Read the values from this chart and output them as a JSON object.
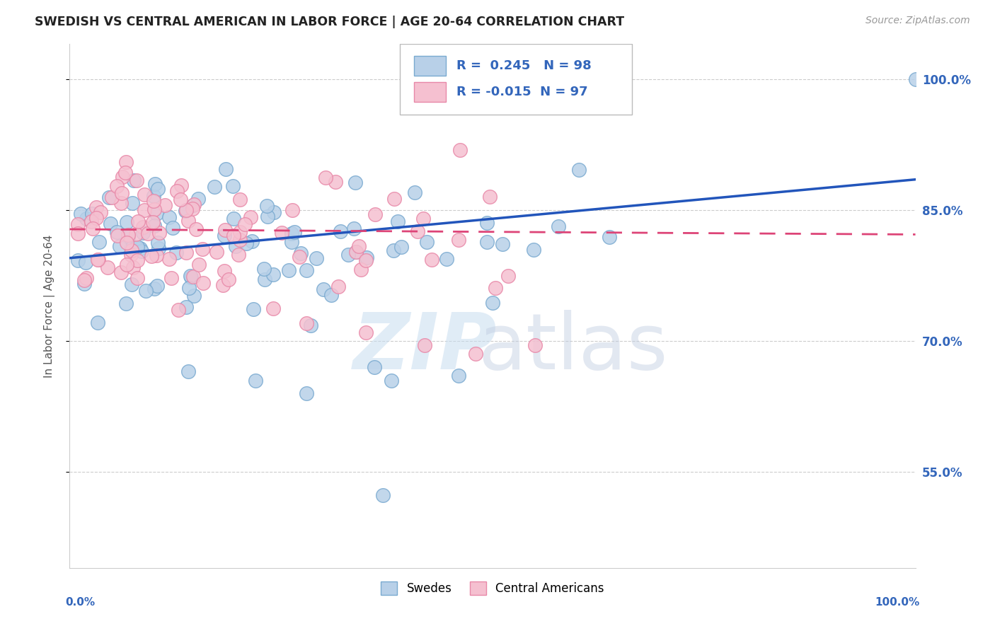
{
  "title": "SWEDISH VS CENTRAL AMERICAN IN LABOR FORCE | AGE 20-64 CORRELATION CHART",
  "source_text": "Source: ZipAtlas.com",
  "ylabel": "In Labor Force | Age 20-64",
  "blue_color": "#b8d0e8",
  "blue_edge": "#7aaad0",
  "pink_color": "#f5c0d0",
  "pink_edge": "#e888a8",
  "blue_line_color": "#2255bb",
  "pink_line_color": "#dd4477",
  "R_blue": 0.245,
  "N_blue": 98,
  "R_pink": -0.015,
  "N_pink": 97,
  "legend_label_blue": "Swedes",
  "legend_label_pink": "Central Americans",
  "title_color": "#222222",
  "axis_label_color": "#3366bb",
  "grid_color": "#cccccc",
  "background_color": "#ffffff",
  "xlim": [
    0.0,
    1.0
  ],
  "ylim": [
    0.44,
    1.04
  ],
  "ytick_vals": [
    0.55,
    0.7,
    0.85,
    1.0
  ],
  "ytick_labels": [
    "55.0%",
    "70.0%",
    "85.0%",
    "100.0%"
  ],
  "blue_line_x": [
    0.0,
    1.0
  ],
  "blue_line_y": [
    0.795,
    0.885
  ],
  "pink_line_x": [
    0.0,
    1.0
  ],
  "pink_line_y": [
    0.828,
    0.822
  ]
}
